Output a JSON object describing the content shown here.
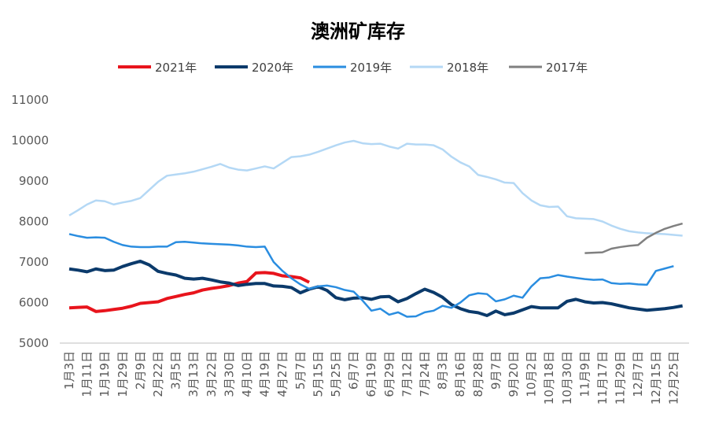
{
  "chart_data": {
    "type": "line",
    "title": "澳洲矿库存",
    "categories": [
      "1月3日",
      null,
      "1月11日",
      null,
      "1月19日",
      null,
      "1月29日",
      null,
      "2月9日",
      null,
      "2月22日",
      null,
      "3月5日",
      null,
      "3月13日",
      null,
      "3月22日",
      null,
      "3月30日",
      null,
      "4月10日",
      null,
      "4月19日",
      null,
      "4月27日",
      null,
      "5月7日",
      null,
      "5月15日",
      null,
      "5月25日",
      null,
      "6月7日",
      null,
      "6月19日",
      null,
      "6月29日",
      null,
      "7月12日",
      null,
      "7月24日",
      null,
      "8月3日",
      null,
      "8月16日",
      null,
      "8月28日",
      null,
      "9月7日",
      null,
      "9月20日",
      null,
      "10月2日",
      null,
      "10月18日",
      null,
      "10月30日",
      null,
      "11月9日",
      null,
      "11月17日",
      null,
      "11月29日",
      null,
      "12月7日",
      null,
      "12月15日",
      null,
      "12月25日",
      null
    ],
    "series": [
      {
        "name": "2021年",
        "color": "#e8141c",
        "values": [
          5870,
          5880,
          5890,
          5780,
          5800,
          5830,
          5860,
          5910,
          5980,
          6000,
          6020,
          6100,
          6150,
          6200,
          6240,
          6310,
          6350,
          6380,
          6420,
          6480,
          6520,
          6730,
          6740,
          6720,
          6660,
          6640,
          6610,
          6500,
          null,
          null,
          null,
          null,
          null,
          null,
          null,
          null,
          null,
          null,
          null,
          null,
          null,
          null,
          null,
          null,
          null,
          null,
          null,
          null,
          null,
          null,
          null,
          null,
          null,
          null,
          null,
          null,
          null,
          null,
          null,
          null,
          null,
          null,
          null,
          null,
          null,
          null,
          null,
          null,
          null,
          null
        ]
      },
      {
        "name": "2020年",
        "color": "#0b3a6b",
        "values": [
          6830,
          6800,
          6760,
          6830,
          6790,
          6800,
          6890,
          6960,
          7020,
          6930,
          6770,
          6720,
          6680,
          6600,
          6580,
          6600,
          6560,
          6510,
          6480,
          6420,
          6450,
          6470,
          6470,
          6410,
          6400,
          6370,
          6240,
          6330,
          6390,
          6300,
          6120,
          6070,
          6110,
          6120,
          6080,
          6140,
          6150,
          6020,
          6100,
          6220,
          6330,
          6250,
          6130,
          5950,
          5850,
          5780,
          5750,
          5680,
          5790,
          5700,
          5740,
          5820,
          5900,
          5870,
          5870,
          5870,
          6030,
          6080,
          6020,
          5990,
          6000,
          5970,
          5920,
          5870,
          5840,
          5810,
          5830,
          5850,
          5880,
          5920
        ]
      },
      {
        "name": "2019年",
        "color": "#2a8de0",
        "values": [
          7690,
          7640,
          7600,
          7610,
          7600,
          7500,
          7420,
          7380,
          7370,
          7370,
          7380,
          7380,
          7490,
          7500,
          7480,
          7460,
          7450,
          7440,
          7430,
          7410,
          7380,
          7370,
          7380,
          7000,
          6780,
          6600,
          6450,
          6340,
          6400,
          6420,
          6380,
          6310,
          6270,
          6050,
          5800,
          5850,
          5700,
          5760,
          5650,
          5660,
          5760,
          5800,
          5920,
          5870,
          6000,
          6180,
          6230,
          6210,
          6030,
          6080,
          6170,
          6120,
          6400,
          6600,
          6620,
          6680,
          6640,
          6610,
          6580,
          6560,
          6570,
          6480,
          6460,
          6470,
          6450,
          6440,
          6780,
          6840,
          6900,
          null
        ]
      },
      {
        "name": "2018年",
        "color": "#b4d8f5",
        "values": [
          8150,
          8280,
          8420,
          8520,
          8500,
          8420,
          8470,
          8510,
          8580,
          8780,
          8980,
          9130,
          9160,
          9190,
          9230,
          9290,
          9350,
          9420,
          9330,
          9280,
          9260,
          9310,
          9360,
          9310,
          9450,
          9590,
          9610,
          9650,
          9720,
          9800,
          9880,
          9950,
          9990,
          9930,
          9910,
          9920,
          9850,
          9800,
          9920,
          9900,
          9900,
          9880,
          9780,
          9600,
          9460,
          9360,
          9150,
          9100,
          9040,
          8960,
          8950,
          8700,
          8520,
          8400,
          8360,
          8370,
          8130,
          8080,
          8070,
          8060,
          8000,
          7900,
          7820,
          7760,
          7730,
          7710,
          7700,
          7690,
          7670,
          7650
        ]
      },
      {
        "name": "2017年",
        "color": "#808080",
        "values": [
          null,
          null,
          null,
          null,
          null,
          null,
          null,
          null,
          null,
          null,
          null,
          null,
          null,
          null,
          null,
          null,
          null,
          null,
          null,
          null,
          null,
          null,
          null,
          null,
          null,
          null,
          null,
          null,
          null,
          null,
          null,
          null,
          null,
          null,
          null,
          null,
          null,
          null,
          null,
          null,
          null,
          null,
          null,
          null,
          null,
          null,
          null,
          null,
          null,
          null,
          null,
          null,
          null,
          null,
          null,
          null,
          null,
          null,
          7220,
          7230,
          7240,
          7330,
          7370,
          7400,
          7420,
          7600,
          7720,
          7820,
          7890,
          7950
        ]
      }
    ],
    "ylim": [
      5000,
      11000
    ],
    "yticks": [
      5000,
      6000,
      7000,
      8000,
      9000,
      10000,
      11000
    ],
    "grid": false,
    "legend": "top"
  }
}
